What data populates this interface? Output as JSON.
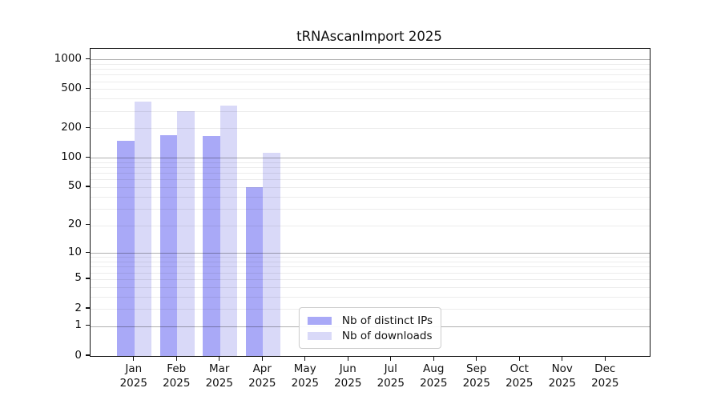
{
  "chart_data": {
    "type": "bar",
    "title": "tRNAscanImport 2025",
    "categories": [
      "Jan",
      "Feb",
      "Mar",
      "Apr",
      "May",
      "Jun",
      "Jul",
      "Aug",
      "Sep",
      "Oct",
      "Nov",
      "Dec"
    ],
    "category_year": "2025",
    "series": [
      {
        "name": "Nb of distinct IPs",
        "color": "#a9a9f7",
        "values": [
          150,
          170,
          168,
          50,
          null,
          null,
          null,
          null,
          null,
          null,
          null,
          null
        ]
      },
      {
        "name": "Nb of downloads",
        "color": "#d9d9f8",
        "values": [
          373,
          296,
          341,
          113,
          null,
          null,
          null,
          null,
          null,
          null,
          null,
          null
        ]
      }
    ],
    "y_ticks": [
      0,
      1,
      2,
      5,
      10,
      20,
      50,
      100,
      200,
      500,
      1000
    ],
    "y_scale": "log1p",
    "y_max": 1280,
    "ylim": [
      0,
      1280
    ],
    "grid": "horizontal",
    "legend_position": "lower center",
    "colors": {
      "major_grid": "#b0b0b0",
      "minor_grid": "#ececec",
      "axis": "#111111",
      "text": "#111111",
      "background": "#ffffff"
    }
  }
}
